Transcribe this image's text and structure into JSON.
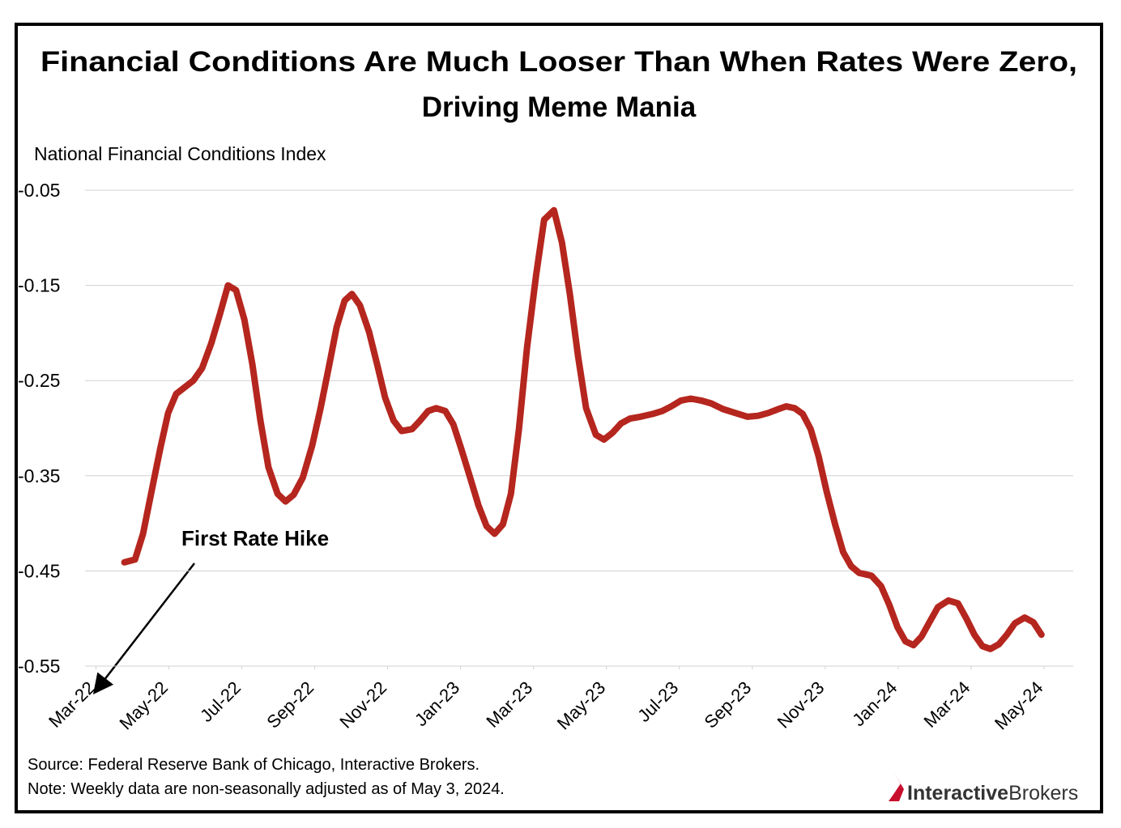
{
  "chart_data": {
    "type": "line",
    "title": [
      "Financial Conditions Are Much Looser Than When Rates Were Zero,",
      "Driving Meme Mania"
    ],
    "y_label": "National Financial Conditions Index",
    "annotation": "First Rate Hike",
    "source": "Source: Federal Reserve Bank of Chicago, Interactive Brokers.",
    "note": "Note: Weekly data are non-seasonally adjusted as of May 3, 2024.",
    "logo": [
      "Interactive",
      "Brokers"
    ],
    "color": "#b5261e",
    "grid": true,
    "ylim": [
      -0.55,
      -0.05
    ],
    "yticks": [
      -0.05,
      -0.15,
      -0.25,
      -0.35,
      -0.45,
      -0.55
    ],
    "xlim": [
      -0.3,
      26.8
    ],
    "xticks": [
      {
        "value": 0,
        "label": "Mar-22"
      },
      {
        "value": 2,
        "label": "May-22"
      },
      {
        "value": 4,
        "label": "Jul-22"
      },
      {
        "value": 6,
        "label": "Sep-22"
      },
      {
        "value": 8,
        "label": "Nov-22"
      },
      {
        "value": 10,
        "label": "Jan-23"
      },
      {
        "value": 12,
        "label": "Mar-23"
      },
      {
        "value": 14,
        "label": "May-23"
      },
      {
        "value": 16,
        "label": "Jul-23"
      },
      {
        "value": 18,
        "label": "Sep-23"
      },
      {
        "value": 20,
        "label": "Nov-23"
      },
      {
        "value": 22,
        "label": "Jan-24"
      },
      {
        "value": 24,
        "label": "Mar-24"
      },
      {
        "value": 26,
        "label": "May-24"
      }
    ],
    "x": [
      0.78,
      1.07,
      1.29,
      1.51,
      1.76,
      1.98,
      2.2,
      2.67,
      2.91,
      3.16,
      3.4,
      3.62,
      3.84,
      4.07,
      4.29,
      4.51,
      4.73,
      4.98,
      5.2,
      5.42,
      5.67,
      5.93,
      6.16,
      6.38,
      6.6,
      6.82,
      7.02,
      7.24,
      7.49,
      7.71,
      7.93,
      8.16,
      8.38,
      8.67,
      8.89,
      9.11,
      9.33,
      9.58,
      9.8,
      10.02,
      10.27,
      10.49,
      10.71,
      10.93,
      11.16,
      11.38,
      11.6,
      11.82,
      12.07,
      12.29,
      12.56,
      12.78,
      13.0,
      13.22,
      13.44,
      13.71,
      13.93,
      14.16,
      14.4,
      14.64,
      14.93,
      15.27,
      15.53,
      15.78,
      16.04,
      16.31,
      16.6,
      16.87,
      17.2,
      17.53,
      17.87,
      18.16,
      18.44,
      18.71,
      18.93,
      19.16,
      19.38,
      19.6,
      19.82,
      20.04,
      20.27,
      20.49,
      20.71,
      20.93,
      21.27,
      21.53,
      21.76,
      21.98,
      22.2,
      22.42,
      22.64,
      22.87,
      23.09,
      23.38,
      23.64,
      23.87,
      24.09,
      24.31,
      24.53,
      24.76,
      24.98,
      25.2,
      25.47,
      25.71,
      25.93
    ],
    "values": [
      -0.441,
      -0.438,
      -0.411,
      -0.369,
      -0.322,
      -0.284,
      -0.264,
      -0.25,
      -0.237,
      -0.211,
      -0.18,
      -0.15,
      -0.155,
      -0.186,
      -0.233,
      -0.292,
      -0.341,
      -0.369,
      -0.377,
      -0.37,
      -0.352,
      -0.318,
      -0.279,
      -0.237,
      -0.194,
      -0.166,
      -0.159,
      -0.171,
      -0.199,
      -0.233,
      -0.268,
      -0.292,
      -0.303,
      -0.301,
      -0.292,
      -0.282,
      -0.279,
      -0.282,
      -0.296,
      -0.322,
      -0.353,
      -0.381,
      -0.403,
      -0.411,
      -0.401,
      -0.369,
      -0.301,
      -0.216,
      -0.139,
      -0.081,
      -0.071,
      -0.105,
      -0.16,
      -0.224,
      -0.279,
      -0.307,
      -0.312,
      -0.305,
      -0.295,
      -0.29,
      -0.288,
      -0.285,
      -0.282,
      -0.277,
      -0.271,
      -0.269,
      -0.271,
      -0.274,
      -0.28,
      -0.284,
      -0.288,
      -0.287,
      -0.284,
      -0.28,
      -0.277,
      -0.279,
      -0.285,
      -0.301,
      -0.33,
      -0.367,
      -0.401,
      -0.43,
      -0.445,
      -0.452,
      -0.455,
      -0.466,
      -0.486,
      -0.509,
      -0.524,
      -0.528,
      -0.519,
      -0.503,
      -0.488,
      -0.481,
      -0.484,
      -0.5,
      -0.517,
      -0.529,
      -0.532,
      -0.527,
      -0.517,
      -0.505,
      -0.499,
      -0.504,
      -0.517
    ]
  }
}
